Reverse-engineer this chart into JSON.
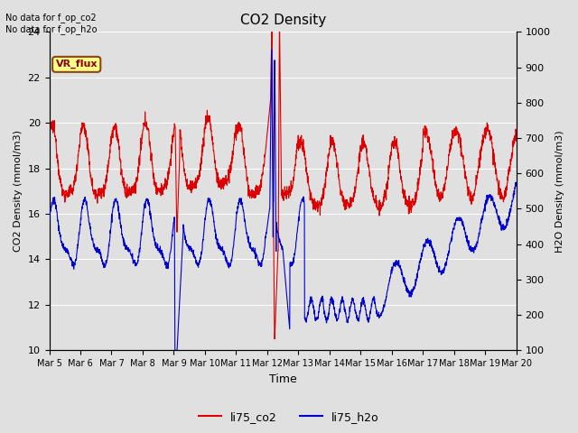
{
  "title": "CO2 Density",
  "xlabel": "Time",
  "ylabel_left": "CO2 Density (mmol/m3)",
  "ylabel_right": "H2O Density (mmol/m3)",
  "ylim_left": [
    10,
    24
  ],
  "ylim_right": [
    100,
    1000
  ],
  "yticks_left": [
    10,
    12,
    14,
    16,
    18,
    20,
    22,
    24
  ],
  "yticks_right": [
    100,
    200,
    300,
    400,
    500,
    600,
    700,
    800,
    900,
    1000
  ],
  "xtick_labels": [
    "Mar 5",
    "Mar 6",
    "Mar 7",
    "Mar 8",
    "Mar 9",
    "Mar 10",
    "Mar 11",
    "Mar 12",
    "Mar 13",
    "Mar 14",
    "Mar 15",
    "Mar 16",
    "Mar 17",
    "Mar 18",
    "Mar 19",
    "Mar 20"
  ],
  "color_co2": "#dd0000",
  "color_h2o": "#0000cc",
  "legend_labels": [
    "li75_co2",
    "li75_h2o"
  ],
  "annotation_text": "No data for f_op_co2\nNo data for f_op_h2o",
  "vr_flux_label": "VR_flux",
  "bg_color": "#e0e0e0",
  "plot_bg_color": "#e0e0e0",
  "grid_color": "#ffffff"
}
